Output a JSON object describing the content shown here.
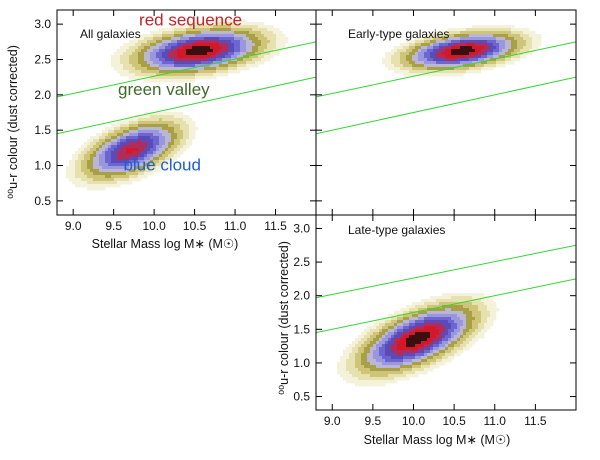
{
  "chart_data": {
    "type": "contour",
    "x_ticks": [
      "9.0",
      "9.5",
      "10.0",
      "10.5",
      "11.0",
      "11.5"
    ],
    "y_ticks": [
      "0.5",
      "1.0",
      "1.5",
      "2.0",
      "2.5",
      "3.0"
    ],
    "xlim": [
      8.8,
      12.0
    ],
    "ylim": [
      0.3,
      3.2
    ],
    "xlabel": "Stellar Mass log M∗ (M☉)",
    "ylabel": "⁰⁰u-r colour (dust corrected)",
    "green_valley_lines": [
      {
        "name": "upper",
        "x": [
          8.8,
          12.0
        ],
        "y": [
          1.97,
          2.75
        ]
      },
      {
        "name": "lower",
        "x": [
          8.8,
          12.0
        ],
        "y": [
          1.45,
          2.25
        ]
      }
    ],
    "contour_colors": [
      "#f5f2dc",
      "#e6e1ae",
      "#cfc579",
      "#a9a046",
      "#b9b7d2",
      "#9a96df",
      "#6c66d0",
      "#5a4cb8",
      "#b02c5a",
      "#d4182a",
      "#3a0f10"
    ],
    "panels": [
      {
        "id": "all",
        "title": "All galaxies",
        "annotations": [
          {
            "text": "red sequence",
            "color": "#c0232b",
            "x": 10.45,
            "y": 2.98
          },
          {
            "text": "green valley",
            "color": "#3f6b2a",
            "x": 10.12,
            "y": 2.0
          },
          {
            "text": "blue cloud",
            "color": "#1c5fd2",
            "x": 10.1,
            "y": 0.93
          }
        ],
        "peaks": [
          {
            "x": 10.55,
            "y": 2.62,
            "sx": 0.42,
            "sy": 0.17,
            "rho": 0.35,
            "amp": 1.0,
            "color": "red"
          },
          {
            "x": 9.72,
            "y": 1.22,
            "sx": 0.32,
            "sy": 0.22,
            "rho": 0.55,
            "amp": 0.82,
            "color": "blue"
          }
        ]
      },
      {
        "id": "early",
        "title": "Early-type galaxies",
        "annotations": [],
        "peaks": [
          {
            "x": 10.6,
            "y": 2.62,
            "sx": 0.38,
            "sy": 0.14,
            "rho": 0.4,
            "amp": 1.0,
            "color": "red"
          }
        ]
      },
      {
        "id": "late",
        "title": "Late-type galaxies",
        "annotations": [],
        "peaks": [
          {
            "x": 10.05,
            "y": 1.36,
            "sx": 0.38,
            "sy": 0.27,
            "rho": 0.62,
            "amp": 1.0,
            "color": "red"
          }
        ]
      }
    ]
  }
}
